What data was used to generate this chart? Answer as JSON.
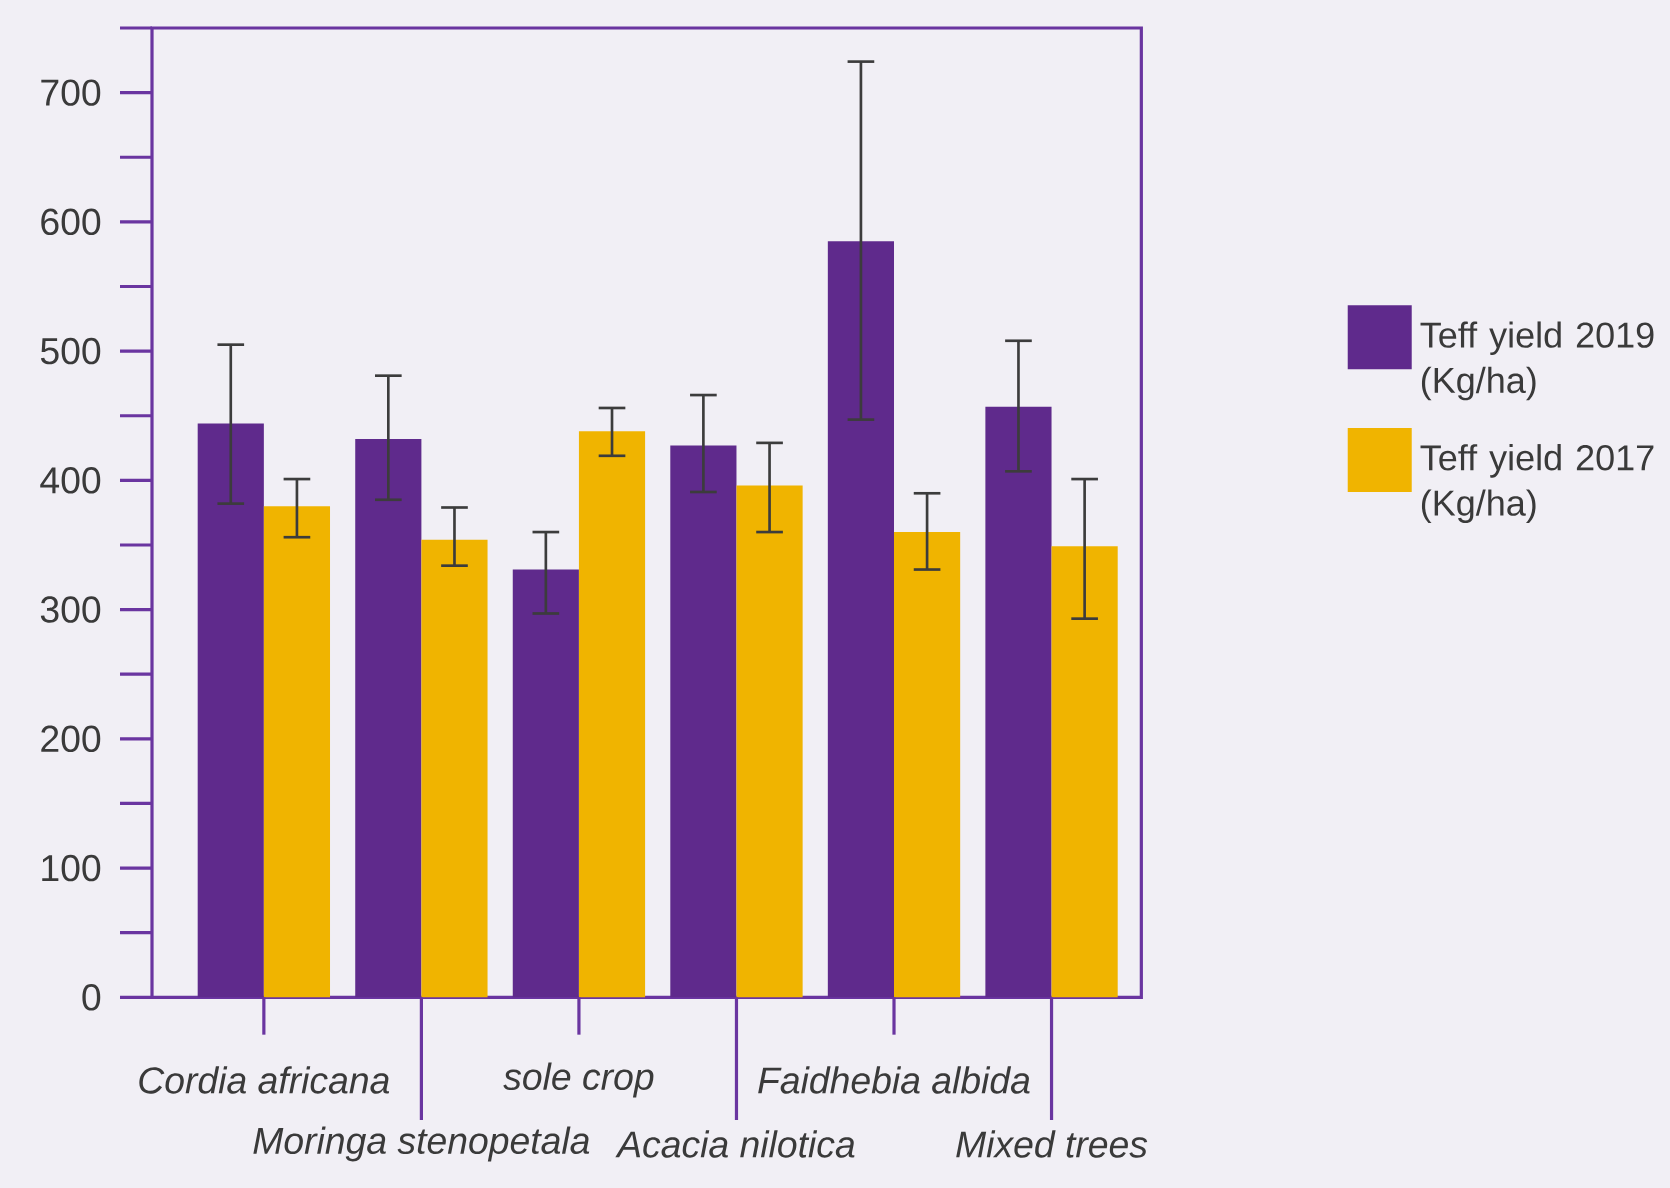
{
  "chart_data": {
    "type": "bar",
    "categories": [
      "Cordia africana",
      "Moringa stenopetala",
      "sole crop",
      "Acacia nilotica",
      "Faidhebia albida",
      "Mixed trees"
    ],
    "series": [
      {
        "name": "Teff yield 2019 (Kg/ha)",
        "color": "#5f2a8c",
        "values": [
          444,
          432,
          331,
          427,
          585,
          457
        ],
        "errors": [
          [
            382,
            505
          ],
          [
            385,
            481
          ],
          [
            297,
            360
          ],
          [
            391,
            466
          ],
          [
            447,
            724
          ],
          [
            407,
            508
          ]
        ]
      },
      {
        "name": "Teff yield 2017 (Kg/ha)",
        "color": "#f0b400",
        "values": [
          380,
          354,
          438,
          396,
          360,
          349
        ],
        "errors": [
          [
            356,
            401
          ],
          [
            334,
            379
          ],
          [
            419,
            456
          ],
          [
            360,
            429
          ],
          [
            331,
            390
          ],
          [
            293,
            401
          ]
        ]
      }
    ],
    "ylim": [
      0,
      750
    ],
    "yticks": [
      0,
      {
        "value": 50,
        "label": null
      },
      100,
      {
        "value": 150,
        "label": null
      },
      200,
      {
        "value": 250,
        "label": null
      },
      300,
      {
        "value": 350,
        "label": null
      },
      400,
      {
        "value": 450,
        "label": null
      },
      500,
      {
        "value": 550,
        "label": null
      },
      600,
      {
        "value": 650,
        "label": null
      },
      700,
      {
        "value": 750,
        "label": null
      }
    ],
    "grid": false,
    "legend": "right"
  }
}
